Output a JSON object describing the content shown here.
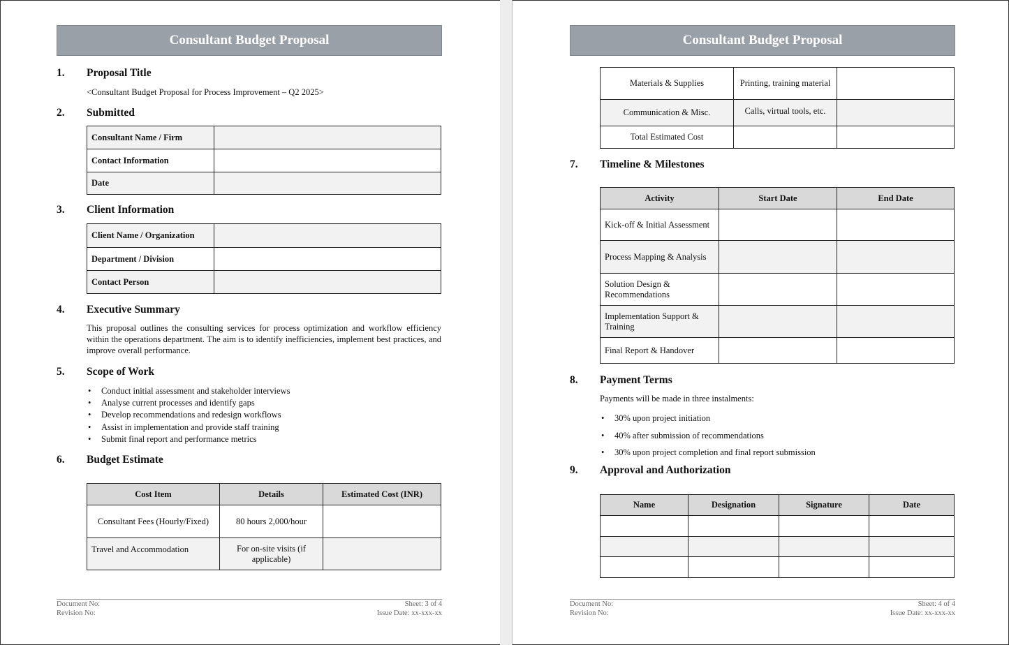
{
  "document_title": "Consultant Budget Proposal",
  "page3": {
    "sections": [
      {
        "number": "1.",
        "title": "Proposal Title"
      },
      {
        "number": "2.",
        "title": "Submitted"
      },
      {
        "number": "3.",
        "title": "Client Information"
      },
      {
        "number": "4.",
        "title": "Executive Summary"
      },
      {
        "number": "5.",
        "title": "Scope of Work"
      },
      {
        "number": "6.",
        "title": "Budget Estimate"
      }
    ],
    "proposal_title_text": "<Consultant Budget Proposal for Process Improvement – Q2 2025>",
    "submitted_rows": [
      "Consultant Name / Firm",
      "Contact Information",
      "Date"
    ],
    "client_rows": [
      "Client Name / Organization",
      "Department / Division",
      "Contact Person"
    ],
    "executive_summary": "This proposal outlines the consulting services for process optimization and workflow efficiency within the operations department. The aim is to identify inefficiencies, implement best practices, and improve overall performance.",
    "scope_items": [
      "Conduct initial assessment and stakeholder interviews",
      "Analyse current processes and identify gaps",
      "Develop recommendations and redesign workflows",
      "Assist in implementation and provide staff training",
      "Submit final report and performance metrics"
    ],
    "budget_headers": [
      "Cost Item",
      "Details",
      "Estimated Cost (INR)"
    ],
    "budget_rows": [
      {
        "item": "Consultant Fees (Hourly/Fixed)",
        "details": "80 hours 2,000/hour",
        "cost": ""
      },
      {
        "item": "Travel and Accommodation",
        "details": "For on-site visits (if applicable)",
        "cost": ""
      }
    ],
    "footer": {
      "doc_no": "Document No:",
      "rev_no": "Revision No:",
      "sheet": "Sheet: 3 of 4",
      "issue_date": "Issue Date: xx-xxx-xx"
    }
  },
  "page4": {
    "budget_rows": [
      {
        "item": "Materials & Supplies",
        "details": "Printing, training material",
        "cost": ""
      },
      {
        "item": "Communication & Misc.",
        "details": "Calls, virtual tools, etc.",
        "cost": ""
      },
      {
        "item": "Total Estimated Cost",
        "details": "",
        "cost": ""
      }
    ],
    "sections": [
      {
        "number": "7.",
        "title": "Timeline & Milestones"
      },
      {
        "number": "8.",
        "title": "Payment Terms"
      },
      {
        "number": "9.",
        "title": "Approval and Authorization"
      }
    ],
    "timeline_headers": [
      "Activity",
      "Start Date",
      "End Date"
    ],
    "timeline_rows": [
      "Kick-off & Initial Assessment",
      "Process Mapping & Analysis",
      "Solution Design & Recommendations",
      "Implementation Support & Training",
      "Final Report & Handover"
    ],
    "payment_intro": "Payments will be made in three instalments:",
    "payment_items": [
      "30% upon project initiation",
      "40% after submission of recommendations",
      "30% upon project completion and final report submission"
    ],
    "approval_headers": [
      "Name",
      "Designation",
      "Signature",
      "Date"
    ],
    "footer": {
      "doc_no": "Document No:",
      "rev_no": "Revision No:",
      "sheet": "Sheet: 4 of 4",
      "issue_date": "Issue Date: xx-xxx-xx"
    }
  }
}
